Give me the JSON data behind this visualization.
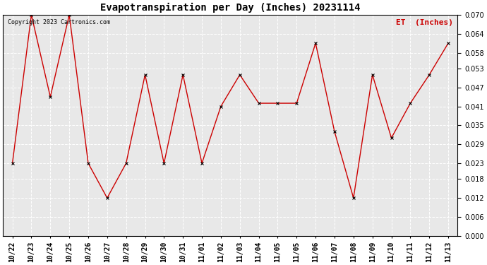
{
  "title": "Evapotranspiration per Day (Inches) 20231114",
  "legend_label": "ET  (Inches)",
  "copyright": "Copyright 2023 Cartronics.com",
  "x_labels": [
    "10/22",
    "10/23",
    "10/24",
    "10/25",
    "10/26",
    "10/27",
    "10/28",
    "10/29",
    "10/30",
    "10/31",
    "11/01",
    "11/02",
    "11/03",
    "11/04",
    "11/05",
    "11/05",
    "11/06",
    "11/07",
    "11/08",
    "11/09",
    "11/10",
    "11/11",
    "11/12",
    "11/13"
  ],
  "y_values": [
    0.023,
    0.07,
    0.044,
    0.07,
    0.023,
    0.012,
    0.023,
    0.051,
    0.023,
    0.051,
    0.023,
    0.041,
    0.051,
    0.042,
    0.042,
    0.042,
    0.061,
    0.033,
    0.012,
    0.051,
    0.031,
    0.042,
    0.051,
    0.061
  ],
  "line_color": "#cc0000",
  "marker_color": "#000000",
  "background_color": "#ffffff",
  "plot_bg_color": "#e8e8e8",
  "grid_color": "#ffffff",
  "ylim": [
    0.0,
    0.07
  ],
  "yticks": [
    0.0,
    0.006,
    0.012,
    0.018,
    0.023,
    0.029,
    0.035,
    0.041,
    0.047,
    0.053,
    0.058,
    0.064,
    0.07
  ],
  "title_fontsize": 10,
  "legend_fontsize": 8,
  "copyright_fontsize": 6,
  "tick_fontsize": 7,
  "marker_size": 3
}
